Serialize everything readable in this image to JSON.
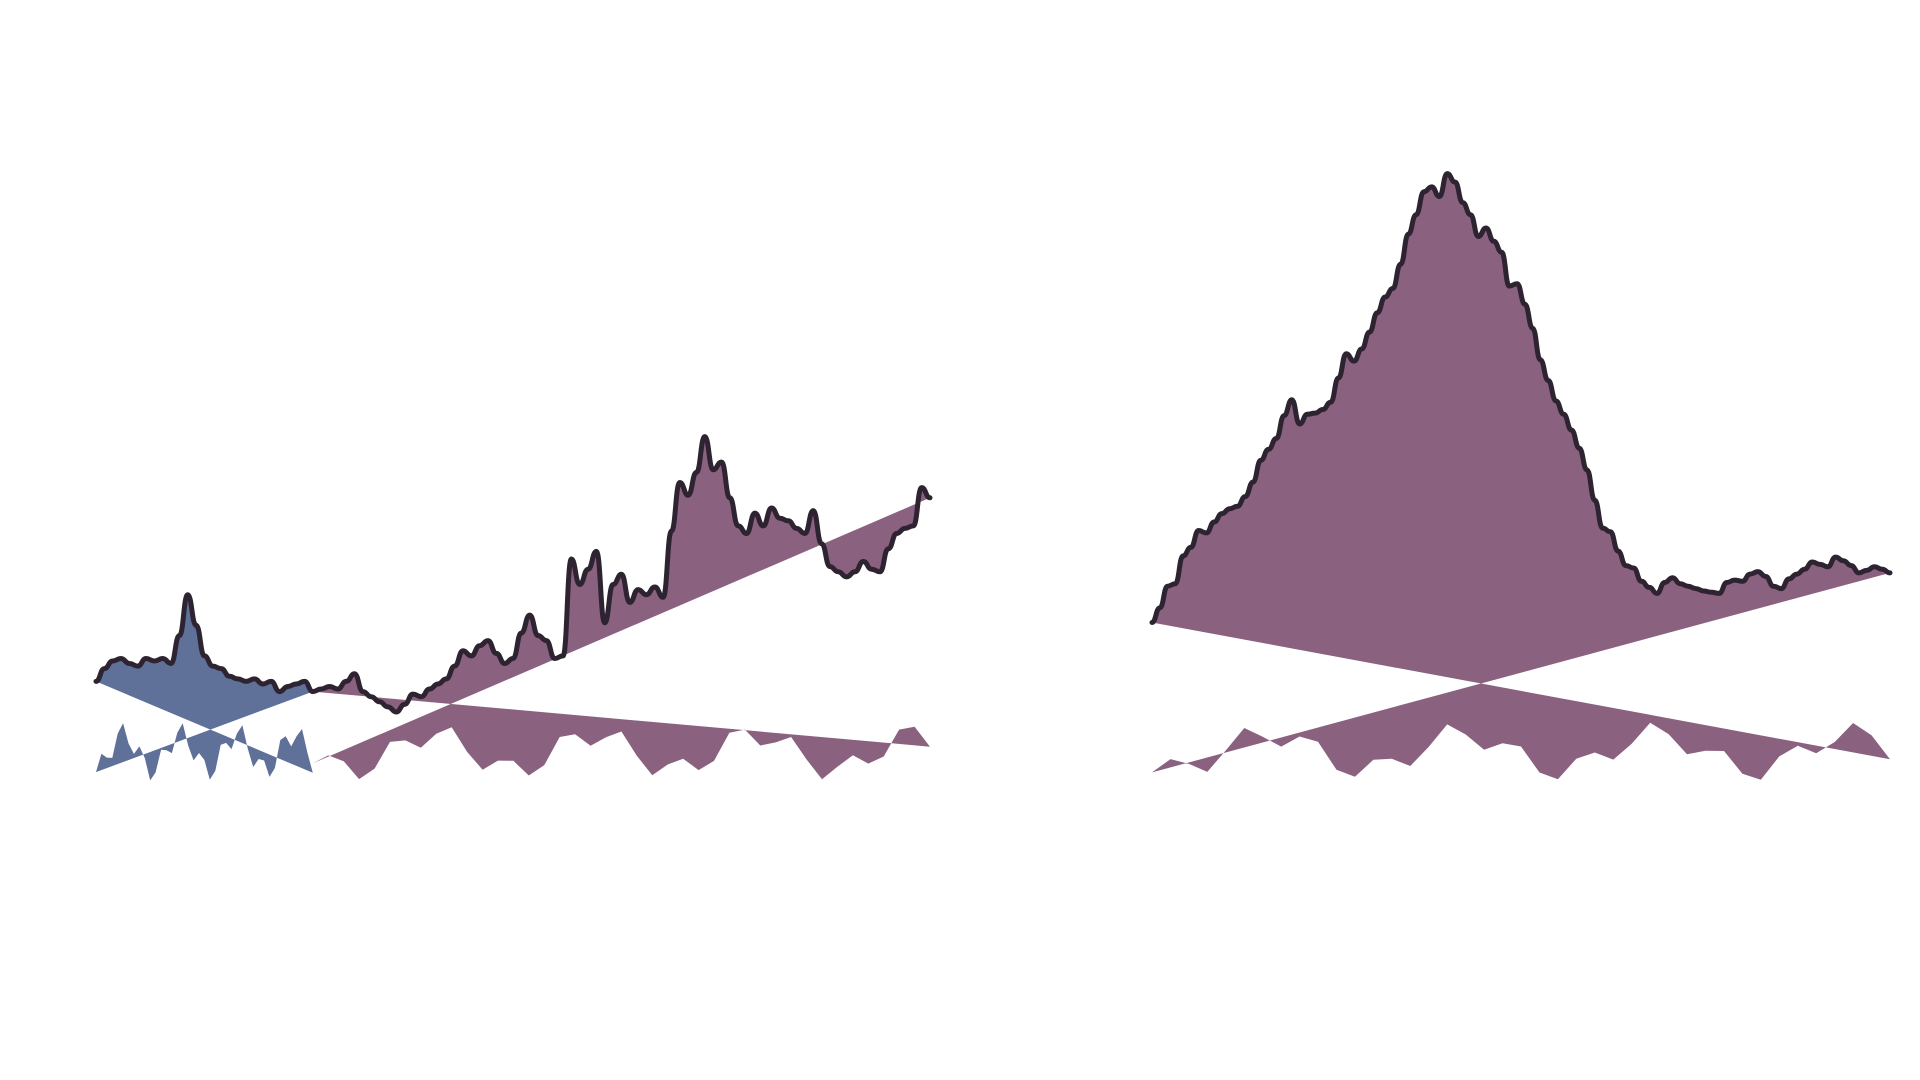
{
  "chart_data": {
    "type": "area",
    "title": "",
    "xlabel": "",
    "ylabel": "",
    "grid": false,
    "legend": "none",
    "colors": {
      "blue_area": "#5f7099",
      "purple_area": "#8a6280",
      "outline": "#2e2330",
      "background": "#ffffff"
    },
    "series": [
      {
        "segment": "left",
        "fill_colors": [
          "blue_area",
          "purple_area"
        ],
        "fill_split_at_x": 26,
        "values": [
          12,
          17,
          20,
          21,
          19,
          18,
          21,
          20,
          21,
          19,
          30,
          46,
          34,
          22,
          18,
          17,
          14,
          13,
          12,
          13,
          11,
          12,
          8,
          10,
          11,
          12,
          8,
          9,
          10,
          9,
          12,
          15,
          8,
          6,
          4,
          2,
          0,
          3,
          7,
          6,
          9,
          11,
          13,
          18,
          24,
          22,
          26,
          28,
          23,
          19,
          21,
          31,
          38,
          30,
          28,
          21,
          22,
          60,
          50,
          56,
          63,
          35,
          50,
          54,
          43,
          48,
          46,
          49,
          45,
          71,
          90,
          85,
          94,
          108,
          95,
          98,
          84,
          73,
          70,
          78,
          73,
          80,
          76,
          75,
          72,
          70,
          79,
          66,
          57,
          55,
          53,
          55,
          59,
          56,
          55,
          64,
          70,
          72,
          73,
          88,
          84
        ]
      },
      {
        "segment": "right",
        "fill_colors": [
          "purple_area"
        ],
        "values": [
          74,
          86,
          104,
          106,
          129,
          136,
          150,
          148,
          157,
          164,
          168,
          170,
          178,
          190,
          208,
          217,
          226,
          245,
          258,
          238,
          246,
          247,
          250,
          256,
          276,
          296,
          290,
          300,
          314,
          330,
          343,
          350,
          370,
          395,
          411,
          430,
          434,
          426,
          445,
          438,
          421,
          411,
          393,
          400,
          389,
          380,
          352,
          354,
          337,
          317,
          291,
          274,
          257,
          246,
          233,
          218,
          200,
          175,
          152,
          149,
          133,
          121,
          119,
          108,
          103,
          98,
          107,
          111,
          106,
          104,
          102,
          100,
          99,
          98,
          107,
          109,
          108,
          114,
          116,
          112,
          104,
          102,
          110,
          114,
          118,
          124,
          122,
          120,
          128,
          125,
          121,
          115,
          117,
          120,
          118,
          115
        ]
      }
    ]
  }
}
